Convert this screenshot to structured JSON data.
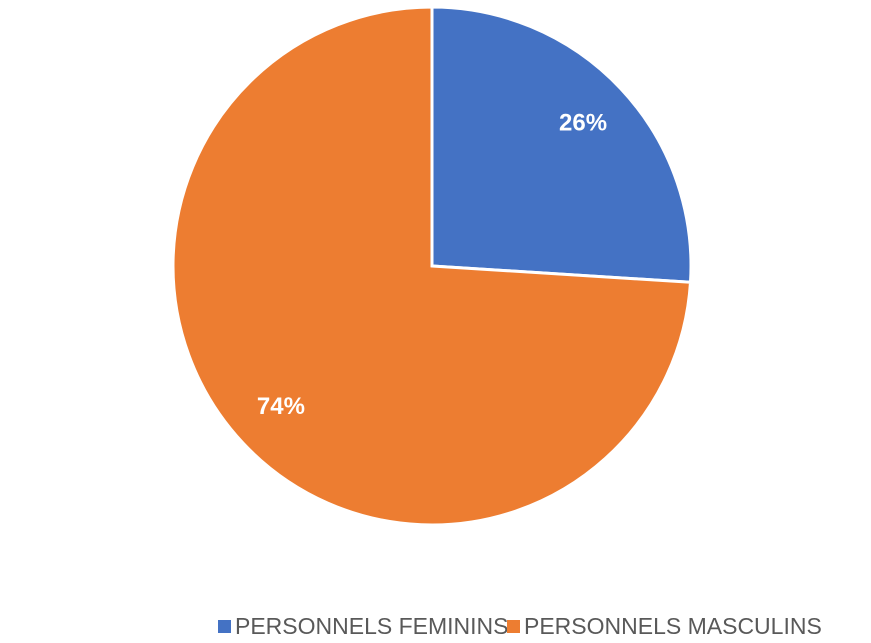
{
  "chart_data": {
    "type": "pie",
    "categories": [
      "PERSONNELS FEMININS",
      "PERSONNELS MASCULINS"
    ],
    "values": [
      26,
      74
    ],
    "value_labels": [
      "26%",
      "74%"
    ],
    "colors": [
      "#4472c4",
      "#ed7d31"
    ],
    "legend": "bottom"
  }
}
